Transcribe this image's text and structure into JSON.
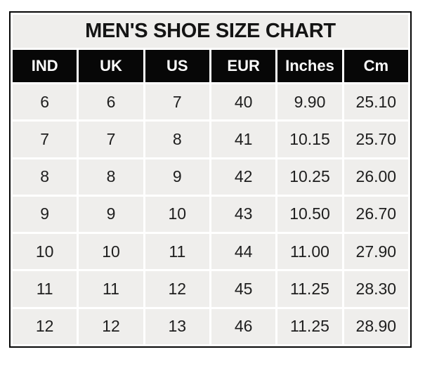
{
  "title": "MEN'S SHOE SIZE CHART",
  "colors": {
    "page_background": "#ffffff",
    "table_border": "#050505",
    "title_background": "#efeeec",
    "header_background": "#070707",
    "header_text": "#fafafa",
    "cell_background": "#efeeec",
    "cell_text": "#1e1e1e",
    "separator": "#ffffff"
  },
  "table": {
    "columns": [
      "IND",
      "UK",
      "US",
      "EUR",
      "Inches",
      "Cm"
    ],
    "rows": [
      [
        "6",
        "6",
        "7",
        "40",
        "9.90",
        "25.10"
      ],
      [
        "7",
        "7",
        "8",
        "41",
        "10.15",
        "25.70"
      ],
      [
        "8",
        "8",
        "9",
        "42",
        "10.25",
        "26.00"
      ],
      [
        "9",
        "9",
        "10",
        "43",
        "10.50",
        "26.70"
      ],
      [
        "10",
        "10",
        "11",
        "44",
        "11.00",
        "27.90"
      ],
      [
        "11",
        "11",
        "12",
        "45",
        "11.25",
        "28.30"
      ],
      [
        "12",
        "12",
        "13",
        "46",
        "11.25",
        "28.90"
      ]
    ]
  },
  "chart_data": {
    "type": "table",
    "title": "MEN'S SHOE SIZE CHART",
    "columns": [
      "IND",
      "UK",
      "US",
      "EUR",
      "Inches",
      "Cm"
    ],
    "rows": [
      [
        6,
        6,
        7,
        40,
        9.9,
        25.1
      ],
      [
        7,
        7,
        8,
        41,
        10.15,
        25.7
      ],
      [
        8,
        8,
        9,
        42,
        10.25,
        26.0
      ],
      [
        9,
        9,
        10,
        43,
        10.5,
        26.7
      ],
      [
        10,
        10,
        11,
        44,
        11.0,
        27.9
      ],
      [
        11,
        11,
        12,
        45,
        11.25,
        28.3
      ],
      [
        12,
        12,
        13,
        46,
        11.25,
        28.9
      ]
    ],
    "legend_position": "none",
    "grid": "white cell spacing on gray cells, black outer border and header row"
  }
}
